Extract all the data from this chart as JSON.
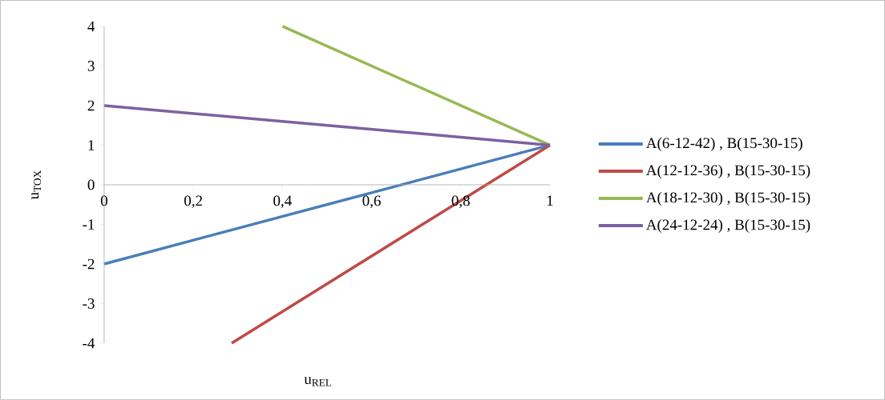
{
  "chart_data": {
    "type": "line",
    "xlabel": "u$_{REL}$",
    "ylabel": "u$_{TOX}$",
    "xlim": [
      0,
      1
    ],
    "ylim": [
      -4,
      4
    ],
    "xticks": [
      0,
      {
        "value": 0.2,
        "label": "0,2"
      },
      {
        "value": 0.4,
        "label": "0,4"
      },
      {
        "value": 0.6,
        "label": "0,6"
      },
      {
        "value": 0.8,
        "label": "0,8"
      },
      1
    ],
    "yticks": [
      -4,
      -3,
      -2,
      -1,
      0,
      1,
      2,
      3,
      4
    ],
    "legend": "right",
    "grid": false,
    "marker": "none",
    "line_style": "solid",
    "series": [
      {
        "name": "A(6-12-42) , B(15-30-15)",
        "color": "#4a7ebb",
        "x": [
          0,
          1
        ],
        "values": [
          -2,
          1
        ]
      },
      {
        "name": "A(12-12-36) , B(15-30-15)",
        "color": "#be4b48",
        "x": [
          0.286,
          1
        ],
        "values": [
          -4,
          1
        ]
      },
      {
        "name": "A(18-12-30) , B(15-30-15)",
        "color": "#98b954",
        "x": [
          0.4,
          1
        ],
        "values": [
          4,
          1
        ]
      },
      {
        "name": "A(24-12-24) , B(15-30-15)",
        "color": "#7d60a0",
        "x": [
          0,
          1
        ],
        "values": [
          2,
          1
        ]
      }
    ]
  }
}
